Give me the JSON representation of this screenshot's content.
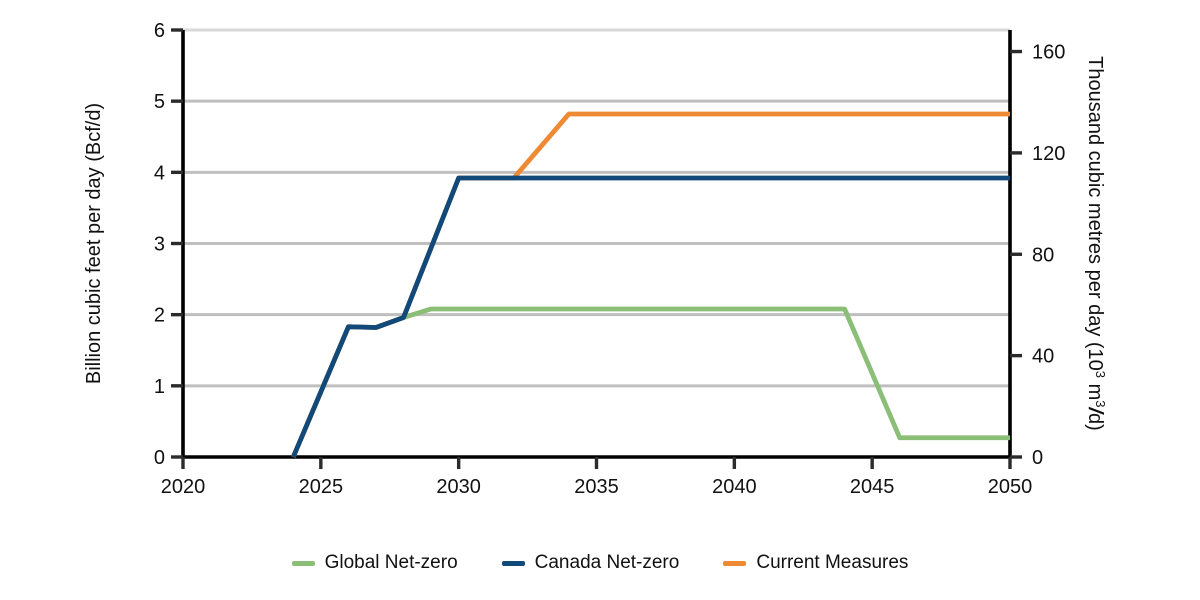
{
  "figure": {
    "background": "#FFFFFF",
    "text_color": "#111111",
    "axis_color": "#000000",
    "tick_color": "#2B2B2B",
    "grid_color": "#BFBFBF",
    "grid_top_color": "#D9D9D9"
  },
  "chart_data": {
    "type": "line",
    "title": "",
    "x_axis": {
      "label": "",
      "ticks": [
        2020,
        2025,
        2030,
        2035,
        2040,
        2045,
        2050
      ],
      "range": [
        2020,
        2050
      ]
    },
    "y_axis_left": {
      "label": "Billion cubic feet per day (Bcf/d)",
      "ticks": [
        0,
        1,
        2,
        3,
        4,
        5,
        6
      ],
      "range": [
        0,
        6
      ]
    },
    "y_axis_right": {
      "label": "Thousand cubic metres per day (10³ m³/d)",
      "label_parts": [
        {
          "text": "Thousand cubic metres per day (10"
        },
        {
          "text": "3",
          "style": "sup"
        },
        {
          "text": " m"
        },
        {
          "text": "3",
          "style": "sup"
        },
        {
          "text": "/",
          "style": "slash"
        },
        {
          "text": "d)"
        }
      ],
      "ticks": [
        0,
        40,
        80,
        120,
        160
      ],
      "range": [
        0,
        168.5
      ]
    },
    "grid": {
      "show": true,
      "lines_at_left_ticks": true
    },
    "legend": {
      "position": "bottom"
    },
    "series": [
      {
        "name": "Global Net-zero",
        "color": "#8BBE76",
        "points": [
          [
            2024,
            0
          ],
          [
            2026,
            1.83
          ],
          [
            2027,
            1.82
          ],
          [
            2028,
            1.96
          ],
          [
            2029,
            2.08
          ],
          [
            2044,
            2.08
          ],
          [
            2046,
            0.27
          ],
          [
            2050,
            0.27
          ]
        ]
      },
      {
        "name": "Canada Net-zero",
        "color": "#11497A",
        "points": [
          [
            2024,
            0
          ],
          [
            2026,
            1.83
          ],
          [
            2027,
            1.82
          ],
          [
            2028,
            1.96
          ],
          [
            2030,
            3.92
          ],
          [
            2050,
            3.92
          ]
        ]
      },
      {
        "name": "Current Measures",
        "color": "#EE8A34",
        "points": [
          [
            2024,
            0
          ],
          [
            2026,
            1.83
          ],
          [
            2027,
            1.82
          ],
          [
            2028,
            1.96
          ],
          [
            2030,
            3.92
          ],
          [
            2032,
            3.92
          ],
          [
            2034,
            4.82
          ],
          [
            2050,
            4.82
          ]
        ]
      }
    ]
  }
}
